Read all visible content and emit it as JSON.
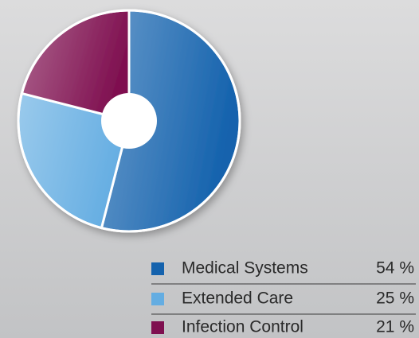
{
  "chart_data": {
    "type": "pie",
    "categories": [
      "Medical Systems",
      "Extended Care",
      "Infection Control"
    ],
    "values": [
      54,
      25,
      21
    ],
    "value_labels": [
      "54 %",
      "25 %",
      "21 %"
    ],
    "colors": [
      "#1462ad",
      "#64ade2",
      "#7f1050"
    ]
  }
}
